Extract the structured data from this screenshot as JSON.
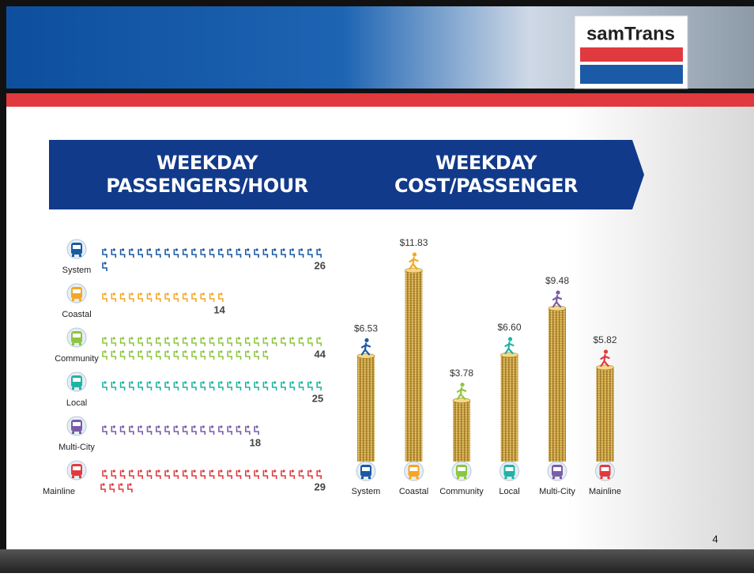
{
  "logo": "samTrans",
  "page_number": "4",
  "chart_data": [
    {
      "type": "pictogram",
      "title": [
        "WEEKDAY",
        "PASSENGERS/HOUR"
      ],
      "categories": [
        "System",
        "Coastal",
        "Community",
        "Local",
        "Multi-City",
        "Mainline"
      ],
      "values": [
        26,
        14,
        44,
        25,
        18,
        29
      ],
      "colors": [
        "#1a5aa6",
        "#f5a623",
        "#8dc63f",
        "#1fb3a4",
        "#7a5ca8",
        "#e03a3e"
      ]
    },
    {
      "type": "bar",
      "title": [
        "WEEKDAY",
        "COST/PASSENGER"
      ],
      "categories": [
        "System",
        "Coastal",
        "Community",
        "Local",
        "Multi-City",
        "Mainline"
      ],
      "values": [
        6.53,
        11.83,
        3.78,
        6.6,
        9.48,
        5.82
      ],
      "value_labels": [
        "$6.53",
        "$11.83",
        "$3.78",
        "$6.60",
        "$9.48",
        "$5.82"
      ],
      "colors": [
        "#1a5aa6",
        "#f5a623",
        "#8dc63f",
        "#1fb3a4",
        "#7a5ca8",
        "#e03a3e"
      ]
    }
  ]
}
